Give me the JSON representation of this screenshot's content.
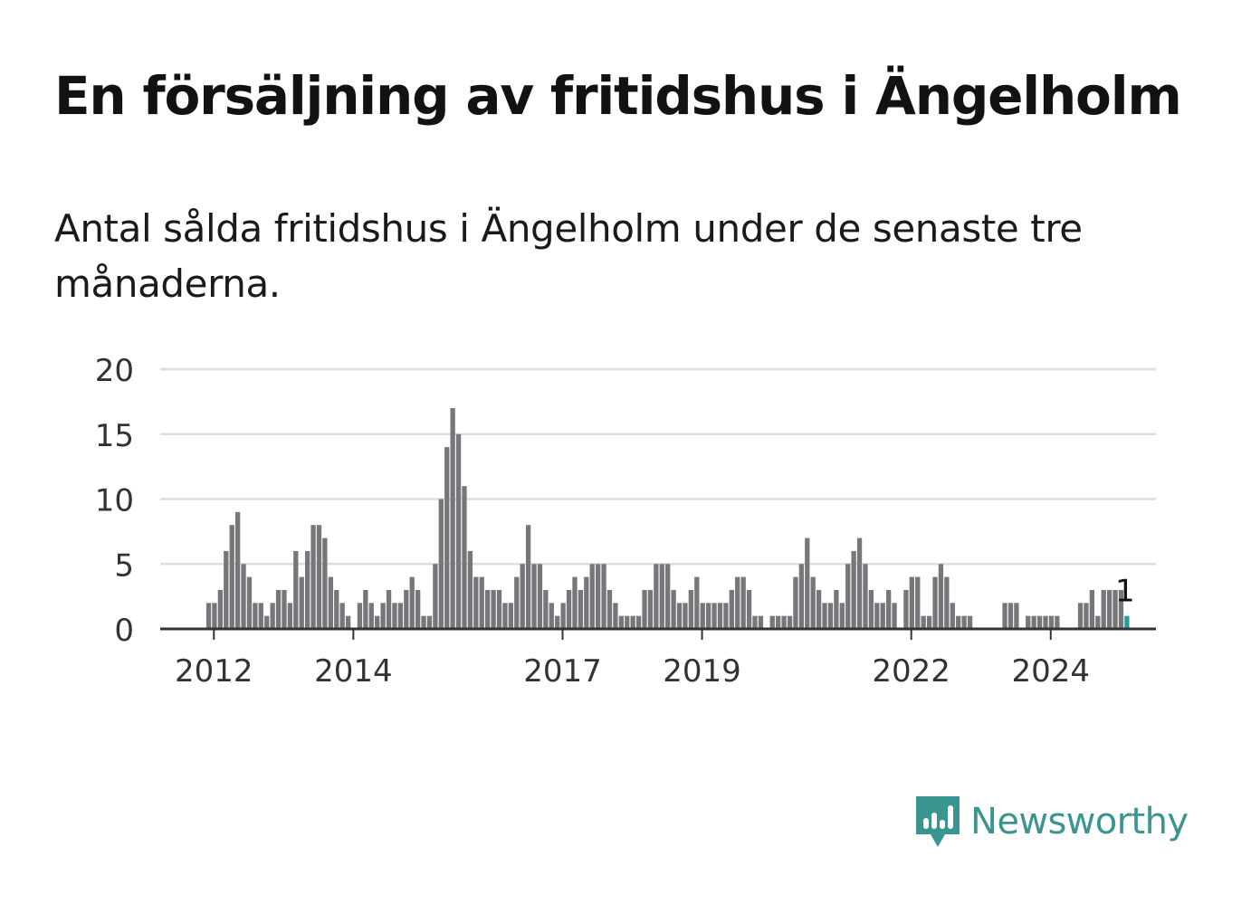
{
  "title": "En försäljning av fritidshus i Ängelholm",
  "subtitle": "Antal sålda fritidshus i Ängelholm under de senaste tre månaderna.",
  "brand": {
    "name": "Newsworthy",
    "color": "#3a9591",
    "icon": "newsworthy-logo-icon"
  },
  "colors": {
    "bar": "#77767b",
    "highlight": "#2a9d98",
    "grid": "#dddddd",
    "axis": "#333333"
  },
  "chart_data": {
    "type": "bar",
    "title": "En försäljning av fritidshus i Ängelholm",
    "subtitle": "Antal sålda fritidshus i Ängelholm under de senaste tre månaderna.",
    "xlabel": "",
    "ylabel": "",
    "ylim": [
      0,
      20
    ],
    "yticks": [
      0,
      5,
      10,
      15,
      20
    ],
    "grid": true,
    "legend": "none",
    "x_tick_labels": [
      "2012",
      "2014",
      "2017",
      "2019",
      "2022",
      "2024"
    ],
    "start": "2011-04",
    "values": [
      0,
      0,
      0,
      0,
      0,
      0,
      0,
      0,
      2,
      2,
      3,
      6,
      8,
      9,
      5,
      4,
      2,
      2,
      1,
      2,
      3,
      3,
      2,
      6,
      4,
      6,
      8,
      8,
      7,
      4,
      3,
      2,
      1,
      0,
      2,
      3,
      2,
      1,
      2,
      3,
      2,
      2,
      3,
      4,
      3,
      1,
      1,
      5,
      10,
      14,
      17,
      15,
      11,
      6,
      4,
      4,
      3,
      3,
      3,
      2,
      2,
      4,
      5,
      8,
      5,
      5,
      3,
      2,
      1,
      2,
      3,
      4,
      3,
      4,
      5,
      5,
      5,
      3,
      2,
      1,
      1,
      1,
      1,
      3,
      3,
      5,
      5,
      5,
      3,
      2,
      2,
      3,
      4,
      2,
      2,
      2,
      2,
      2,
      3,
      4,
      4,
      3,
      1,
      1,
      0,
      1,
      1,
      1,
      1,
      4,
      5,
      7,
      4,
      3,
      2,
      2,
      3,
      2,
      5,
      6,
      7,
      5,
      3,
      2,
      2,
      3,
      2,
      0,
      3,
      4,
      4,
      1,
      1,
      4,
      5,
      4,
      2,
      1,
      1,
      1,
      0,
      0,
      0,
      0,
      0,
      2,
      2,
      2,
      0,
      1,
      1,
      1,
      1,
      1,
      1,
      0,
      0,
      0,
      2,
      2,
      3,
      1,
      3,
      3,
      3,
      3,
      1
    ],
    "highlight": {
      "label": "1",
      "value": 1
    }
  }
}
